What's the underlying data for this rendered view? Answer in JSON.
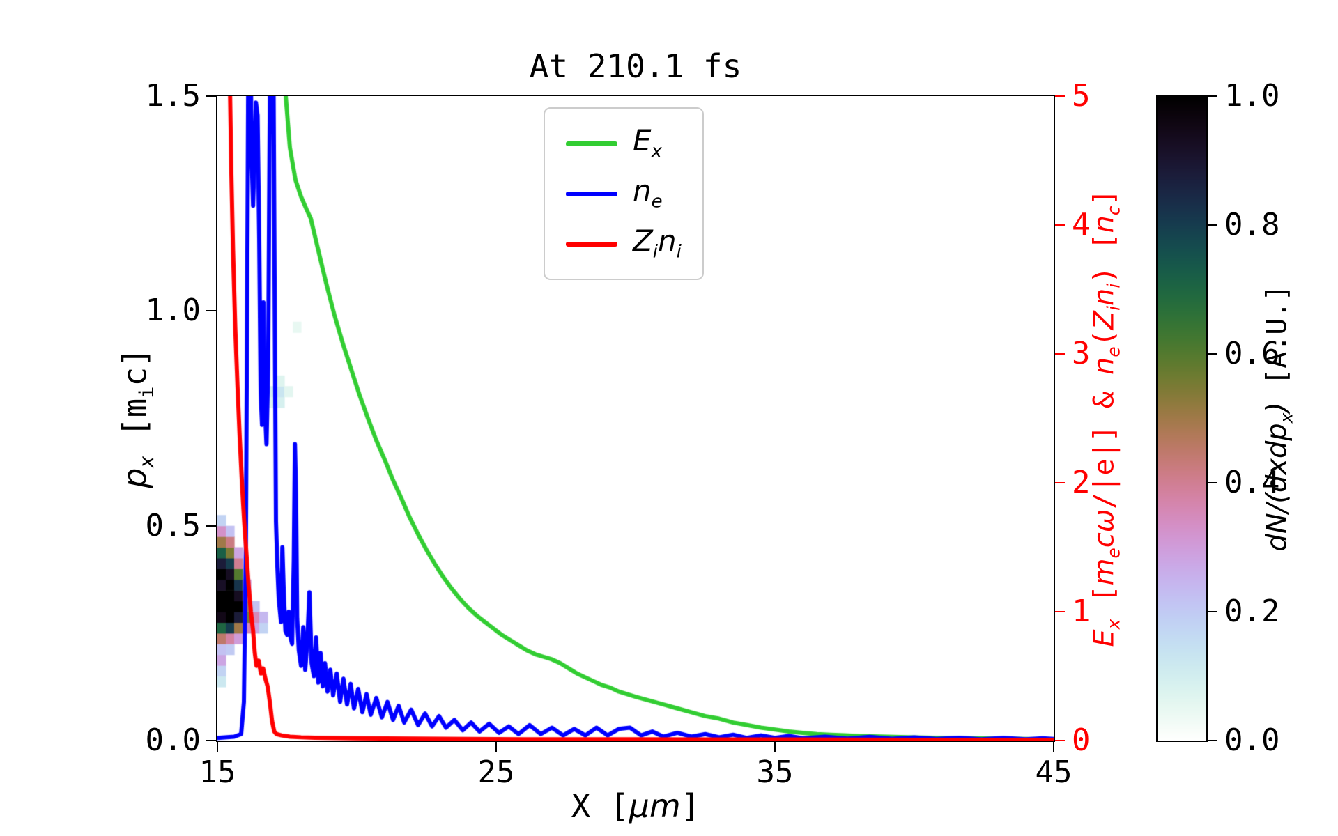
{
  "chart_data": {
    "type": "line",
    "title": "At 210.1 fs",
    "x": {
      "label_math": "X [*μm*]",
      "min": 15,
      "max": 45,
      "ticks": [
        15,
        25,
        35,
        45
      ]
    },
    "y_left": {
      "label_math": "*p_{x}* [m_{i}c]",
      "min": 0,
      "max": 1.5,
      "ticks": [
        "0.0",
        "0.5",
        "1.0",
        "1.5"
      ]
    },
    "y_right": {
      "label_math": "*E_{x}* [*m_{e}cω*/|e|] & *n_{e}*(*Z_{i}n_{i}*) [*n_{c}*]",
      "min": 0,
      "max": 5,
      "ticks": [
        0,
        1,
        2,
        3,
        4,
        5
      ],
      "color": "#ff0000"
    },
    "colorbar": {
      "label_math": "*dN/(dxdp_{x})* [A.U.]",
      "min": 0,
      "max": 1,
      "ticks": [
        "0.0",
        "0.2",
        "0.4",
        "0.6",
        "0.8",
        "1.0"
      ],
      "colormap": "cubehelix_r"
    },
    "legend": [
      {
        "label_math": "*E_{x}*"
      },
      {
        "label_math": "*n_{e}*"
      },
      {
        "label_math": "*Z_{i}n_{i}*"
      }
    ],
    "series": [
      {
        "name": "E_x",
        "axis": "right",
        "color": "#32cd32",
        "points": [
          [
            17.3,
            5.8
          ],
          [
            17.45,
            5.0
          ],
          [
            17.6,
            4.6
          ],
          [
            17.8,
            4.35
          ],
          [
            18.0,
            4.22
          ],
          [
            18.2,
            4.12
          ],
          [
            18.35,
            4.05
          ],
          [
            18.6,
            3.82
          ],
          [
            18.9,
            3.55
          ],
          [
            19.2,
            3.3
          ],
          [
            19.5,
            3.08
          ],
          [
            19.8,
            2.88
          ],
          [
            20.1,
            2.68
          ],
          [
            20.4,
            2.5
          ],
          [
            20.7,
            2.33
          ],
          [
            21.0,
            2.18
          ],
          [
            21.3,
            2.02
          ],
          [
            21.6,
            1.88
          ],
          [
            21.9,
            1.73
          ],
          [
            22.2,
            1.6
          ],
          [
            22.5,
            1.48
          ],
          [
            22.8,
            1.37
          ],
          [
            23.1,
            1.27
          ],
          [
            23.4,
            1.18
          ],
          [
            23.7,
            1.1
          ],
          [
            24.0,
            1.03
          ],
          [
            24.3,
            0.97
          ],
          [
            24.6,
            0.92
          ],
          [
            24.9,
            0.87
          ],
          [
            25.2,
            0.82
          ],
          [
            25.5,
            0.78
          ],
          [
            25.8,
            0.74
          ],
          [
            26.1,
            0.7
          ],
          [
            26.4,
            0.67
          ],
          [
            26.7,
            0.65
          ],
          [
            27.0,
            0.63
          ],
          [
            27.3,
            0.6
          ],
          [
            27.6,
            0.56
          ],
          [
            27.9,
            0.52
          ],
          [
            28.2,
            0.49
          ],
          [
            28.5,
            0.46
          ],
          [
            28.8,
            0.43
          ],
          [
            29.1,
            0.41
          ],
          [
            29.4,
            0.38
          ],
          [
            29.7,
            0.36
          ],
          [
            30.0,
            0.34
          ],
          [
            30.5,
            0.31
          ],
          [
            31.0,
            0.28
          ],
          [
            31.5,
            0.25
          ],
          [
            32.0,
            0.22
          ],
          [
            32.5,
            0.19
          ],
          [
            33.0,
            0.17
          ],
          [
            33.5,
            0.14
          ],
          [
            34.0,
            0.12
          ],
          [
            34.5,
            0.1
          ],
          [
            35.0,
            0.085
          ],
          [
            35.5,
            0.07
          ],
          [
            36.0,
            0.06
          ],
          [
            36.5,
            0.05
          ],
          [
            37.0,
            0.045
          ],
          [
            37.5,
            0.04
          ],
          [
            38.0,
            0.035
          ],
          [
            39.0,
            0.03
          ],
          [
            40.0,
            0.025
          ],
          [
            41.0,
            0.02
          ],
          [
            42.0,
            0.018
          ],
          [
            43.0,
            0.015
          ],
          [
            44.0,
            0.012
          ],
          [
            45.0,
            0.01
          ]
        ]
      },
      {
        "name": "n_e",
        "axis": "right",
        "color": "#0000ff",
        "points": [
          [
            15.0,
            0.02
          ],
          [
            15.6,
            0.03
          ],
          [
            15.85,
            0.05
          ],
          [
            15.95,
            0.3
          ],
          [
            16.02,
            1.5
          ],
          [
            16.08,
            4.0
          ],
          [
            16.12,
            5.8
          ],
          [
            16.18,
            5.8
          ],
          [
            16.22,
            4.6
          ],
          [
            16.28,
            4.15
          ],
          [
            16.33,
            4.5
          ],
          [
            16.38,
            4.95
          ],
          [
            16.44,
            4.85
          ],
          [
            16.5,
            3.9
          ],
          [
            16.55,
            2.7
          ],
          [
            16.6,
            2.45
          ],
          [
            16.65,
            3.4
          ],
          [
            16.7,
            2.6
          ],
          [
            16.76,
            2.3
          ],
          [
            16.82,
            2.9
          ],
          [
            16.88,
            5.0
          ],
          [
            16.93,
            5.8
          ],
          [
            17.0,
            5.6
          ],
          [
            17.05,
            3.6
          ],
          [
            17.1,
            1.7
          ],
          [
            17.15,
            1.35
          ],
          [
            17.2,
            1.1
          ],
          [
            17.28,
            0.92
          ],
          [
            17.33,
            1.5
          ],
          [
            17.38,
            1.15
          ],
          [
            17.44,
            0.85
          ],
          [
            17.5,
            0.82
          ],
          [
            17.56,
            1.0
          ],
          [
            17.62,
            0.8
          ],
          [
            17.68,
            0.75
          ],
          [
            17.74,
            1.4
          ],
          [
            17.78,
            2.3
          ],
          [
            17.82,
            1.9
          ],
          [
            17.86,
            0.95
          ],
          [
            17.92,
            0.7
          ],
          [
            18.0,
            0.58
          ],
          [
            18.08,
            0.88
          ],
          [
            18.15,
            0.55
          ],
          [
            18.22,
            0.75
          ],
          [
            18.3,
            1.15
          ],
          [
            18.38,
            0.6
          ],
          [
            18.46,
            0.5
          ],
          [
            18.54,
            0.8
          ],
          [
            18.62,
            0.45
          ],
          [
            18.7,
            0.68
          ],
          [
            18.78,
            0.42
          ],
          [
            18.86,
            0.6
          ],
          [
            18.95,
            0.38
          ],
          [
            19.05,
            0.55
          ],
          [
            19.15,
            0.35
          ],
          [
            19.28,
            0.52
          ],
          [
            19.4,
            0.3
          ],
          [
            19.52,
            0.48
          ],
          [
            19.65,
            0.28
          ],
          [
            19.78,
            0.44
          ],
          [
            19.9,
            0.25
          ],
          [
            20.05,
            0.4
          ],
          [
            20.2,
            0.22
          ],
          [
            20.35,
            0.36
          ],
          [
            20.5,
            0.2
          ],
          [
            20.7,
            0.33
          ],
          [
            20.9,
            0.18
          ],
          [
            21.1,
            0.3
          ],
          [
            21.3,
            0.16
          ],
          [
            21.5,
            0.27
          ],
          [
            21.7,
            0.14
          ],
          [
            21.95,
            0.24
          ],
          [
            22.2,
            0.12
          ],
          [
            22.45,
            0.21
          ],
          [
            22.7,
            0.11
          ],
          [
            22.95,
            0.19
          ],
          [
            23.2,
            0.1
          ],
          [
            23.5,
            0.16
          ],
          [
            23.8,
            0.08
          ],
          [
            24.1,
            0.14
          ],
          [
            24.4,
            0.07
          ],
          [
            24.75,
            0.13
          ],
          [
            25.1,
            0.06
          ],
          [
            25.45,
            0.11
          ],
          [
            25.8,
            0.05
          ],
          [
            26.2,
            0.12
          ],
          [
            26.6,
            0.05
          ],
          [
            27.0,
            0.1
          ],
          [
            27.4,
            0.04
          ],
          [
            27.8,
            0.09
          ],
          [
            28.2,
            0.04
          ],
          [
            28.6,
            0.1
          ],
          [
            29.0,
            0.04
          ],
          [
            29.4,
            0.09
          ],
          [
            29.8,
            0.1
          ],
          [
            30.2,
            0.04
          ],
          [
            30.6,
            0.07
          ],
          [
            31.0,
            0.03
          ],
          [
            31.5,
            0.06
          ],
          [
            32.0,
            0.03
          ],
          [
            32.5,
            0.05
          ],
          [
            33.0,
            0.025
          ],
          [
            33.5,
            0.045
          ],
          [
            34.0,
            0.02
          ],
          [
            34.5,
            0.04
          ],
          [
            35.0,
            0.02
          ],
          [
            35.5,
            0.035
          ],
          [
            36.0,
            0.018
          ],
          [
            36.8,
            0.03
          ],
          [
            37.6,
            0.015
          ],
          [
            38.4,
            0.028
          ],
          [
            39.2,
            0.014
          ],
          [
            40.0,
            0.025
          ],
          [
            40.8,
            0.012
          ],
          [
            41.6,
            0.022
          ],
          [
            42.4,
            0.01
          ],
          [
            43.2,
            0.02
          ],
          [
            44.0,
            0.01
          ],
          [
            44.6,
            0.018
          ],
          [
            45.0,
            0.012
          ]
        ]
      },
      {
        "name": "Z_i n_i",
        "axis": "right",
        "color": "#ff0000",
        "points": [
          [
            15.0,
            5.8
          ],
          [
            15.38,
            5.8
          ],
          [
            15.44,
            5.2
          ],
          [
            15.5,
            4.4
          ],
          [
            15.56,
            3.8
          ],
          [
            15.64,
            3.2
          ],
          [
            15.72,
            2.75
          ],
          [
            15.8,
            2.35
          ],
          [
            15.88,
            2.0
          ],
          [
            15.96,
            1.7
          ],
          [
            16.04,
            1.45
          ],
          [
            16.12,
            1.2
          ],
          [
            16.2,
            1.0
          ],
          [
            16.28,
            0.85
          ],
          [
            16.34,
            0.68
          ],
          [
            16.4,
            0.58
          ],
          [
            16.48,
            0.62
          ],
          [
            16.56,
            0.52
          ],
          [
            16.64,
            0.56
          ],
          [
            16.72,
            0.48
          ],
          [
            16.8,
            0.42
          ],
          [
            16.88,
            0.3
          ],
          [
            16.96,
            0.15
          ],
          [
            17.04,
            0.07
          ],
          [
            17.12,
            0.05
          ],
          [
            17.3,
            0.04
          ],
          [
            17.6,
            0.03
          ],
          [
            18.0,
            0.025
          ],
          [
            18.5,
            0.022
          ],
          [
            19.0,
            0.02
          ],
          [
            20.0,
            0.018
          ],
          [
            21.0,
            0.016
          ],
          [
            22.0,
            0.015
          ],
          [
            24.0,
            0.012
          ],
          [
            26.0,
            0.01
          ],
          [
            28.0,
            0.01
          ],
          [
            30.0,
            0.01
          ],
          [
            33.0,
            0.008
          ],
          [
            36.0,
            0.008
          ],
          [
            40.0,
            0.006
          ],
          [
            45.0,
            0.006
          ]
        ]
      }
    ],
    "heatmap": {
      "type": "heatmap",
      "name": "dN/(dxdp_x)",
      "axis": "left",
      "dx": 0.3,
      "dp": 0.025,
      "value_range": [
        0,
        1
      ],
      "cells": [
        [
          15.0,
          0.125,
          0.12
        ],
        [
          15.0,
          0.15,
          0.18
        ],
        [
          15.0,
          0.175,
          0.28
        ],
        [
          15.0,
          0.2,
          0.22
        ],
        [
          15.0,
          0.225,
          0.45
        ],
        [
          15.0,
          0.25,
          0.7
        ],
        [
          15.0,
          0.275,
          0.95
        ],
        [
          15.0,
          0.3,
          1.0
        ],
        [
          15.0,
          0.325,
          1.0
        ],
        [
          15.0,
          0.35,
          0.92
        ],
        [
          15.0,
          0.375,
          1.0
        ],
        [
          15.0,
          0.4,
          0.88
        ],
        [
          15.0,
          0.425,
          0.72
        ],
        [
          15.0,
          0.45,
          0.5
        ],
        [
          15.0,
          0.475,
          0.33
        ],
        [
          15.0,
          0.5,
          0.18
        ],
        [
          15.3,
          0.2,
          0.2
        ],
        [
          15.3,
          0.225,
          0.38
        ],
        [
          15.3,
          0.25,
          0.8
        ],
        [
          15.3,
          0.275,
          1.0
        ],
        [
          15.3,
          0.3,
          1.0
        ],
        [
          15.3,
          0.325,
          1.0
        ],
        [
          15.3,
          0.35,
          1.0
        ],
        [
          15.3,
          0.375,
          0.93
        ],
        [
          15.3,
          0.4,
          0.8
        ],
        [
          15.3,
          0.425,
          0.55
        ],
        [
          15.3,
          0.45,
          0.42
        ],
        [
          15.3,
          0.475,
          0.22
        ],
        [
          15.6,
          0.225,
          0.3
        ],
        [
          15.6,
          0.25,
          0.5
        ],
        [
          15.6,
          0.275,
          0.88
        ],
        [
          15.6,
          0.3,
          1.0
        ],
        [
          15.6,
          0.325,
          0.93
        ],
        [
          15.6,
          0.35,
          0.82
        ],
        [
          15.6,
          0.375,
          0.6
        ],
        [
          15.6,
          0.4,
          0.4
        ],
        [
          15.6,
          0.425,
          0.28
        ],
        [
          15.9,
          0.25,
          0.35
        ],
        [
          15.9,
          0.275,
          0.55
        ],
        [
          15.9,
          0.3,
          0.48
        ],
        [
          15.9,
          0.325,
          0.38
        ],
        [
          15.9,
          0.35,
          0.28
        ],
        [
          16.2,
          0.25,
          0.28
        ],
        [
          16.2,
          0.275,
          0.35
        ],
        [
          16.2,
          0.3,
          0.22
        ],
        [
          16.5,
          0.25,
          0.18
        ],
        [
          16.5,
          0.275,
          0.24
        ],
        [
          16.8,
          0.775,
          0.07
        ],
        [
          16.8,
          0.8,
          0.1
        ],
        [
          17.1,
          0.775,
          0.09
        ],
        [
          17.1,
          0.8,
          0.13
        ],
        [
          17.1,
          0.825,
          0.07
        ],
        [
          17.4,
          0.8,
          0.06
        ],
        [
          17.7,
          0.95,
          0.05
        ]
      ]
    }
  }
}
